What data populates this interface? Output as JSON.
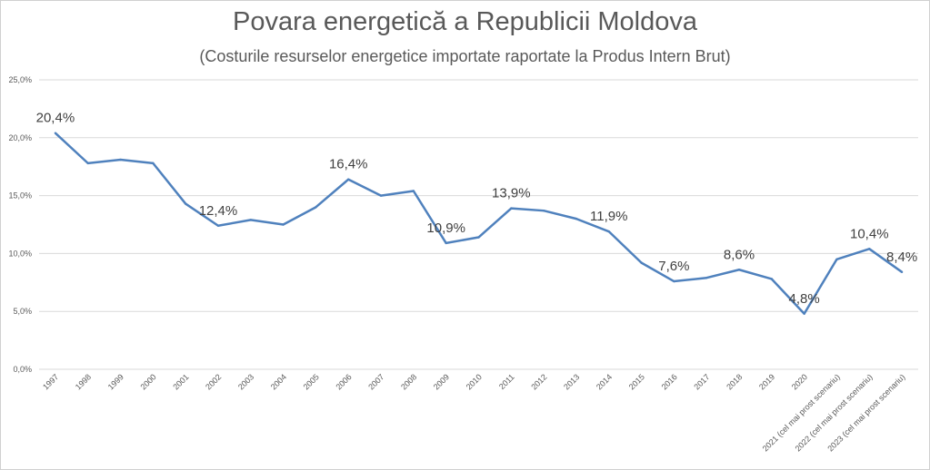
{
  "chart_data": {
    "type": "line",
    "title": "Povara energetică  a Republicii  Moldova",
    "subtitle": "(Costurile resurselor energetice importate raportate la Produs Intern Brut)",
    "xlabel": "",
    "ylabel": "",
    "ylim": [
      0,
      25
    ],
    "yticks": [
      "0,0%",
      "5,0%",
      "10,0%",
      "15,0%",
      "20,0%",
      "25,0%"
    ],
    "grid": true,
    "legend": "none",
    "line_color": "#4f81bd",
    "categories": [
      "1997",
      "1998",
      "1999",
      "2000",
      "2001",
      "2002",
      "2003",
      "2004",
      "2005",
      "2006",
      "2007",
      "2008",
      "2009",
      "2010",
      "2011",
      "2012",
      "2013",
      "2014",
      "2015",
      "2016",
      "2017",
      "2018",
      "2019",
      "2020",
      "2021 (cel mai prost scenariu)",
      "2022 (cel mai prost scenariu)",
      "2023 (cel mai prost scenariu)"
    ],
    "values": [
      20.4,
      17.8,
      18.1,
      17.8,
      14.3,
      12.4,
      12.9,
      12.5,
      14.0,
      16.4,
      15.0,
      15.4,
      10.9,
      11.4,
      13.9,
      13.7,
      13.0,
      11.9,
      9.2,
      7.6,
      7.9,
      8.6,
      7.8,
      4.8,
      9.5,
      10.4,
      8.4
    ],
    "data_labels": [
      {
        "index": 0,
        "text": "20,4%"
      },
      {
        "index": 5,
        "text": "12,4%"
      },
      {
        "index": 9,
        "text": "16,4%"
      },
      {
        "index": 12,
        "text": "10,9%"
      },
      {
        "index": 14,
        "text": "13,9%"
      },
      {
        "index": 17,
        "text": "11,9%"
      },
      {
        "index": 19,
        "text": "7,6%"
      },
      {
        "index": 21,
        "text": "8,6%"
      },
      {
        "index": 23,
        "text": "4,8%"
      },
      {
        "index": 25,
        "text": "10,4%"
      },
      {
        "index": 26,
        "text": "8,4%"
      }
    ]
  }
}
